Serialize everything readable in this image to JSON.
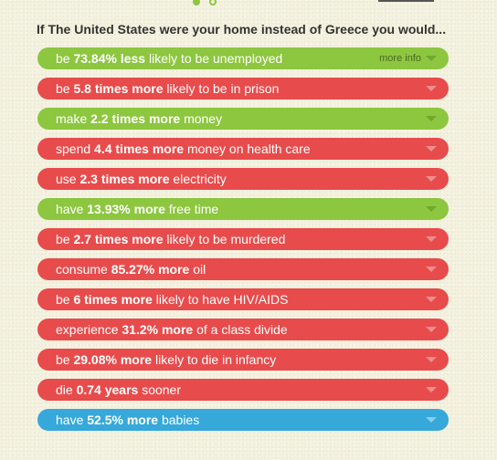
{
  "heading": "If The United States were your home instead of Greece you would...",
  "more_info_label": "more info",
  "rows": [
    {
      "before": "be ",
      "strong": "73.84% less",
      "after": " likely to be unemployed",
      "color": "green",
      "caret_icon": "chevron-down-icon"
    },
    {
      "before": "be ",
      "strong": "5.8 times more",
      "after": " likely to be in prison",
      "color": "red",
      "caret_icon": "chevron-down-icon"
    },
    {
      "before": "make ",
      "strong": "2.2 times more",
      "after": " money",
      "color": "green",
      "caret_icon": "chevron-down-icon"
    },
    {
      "before": "spend ",
      "strong": "4.4 times more",
      "after": " money on health care",
      "color": "red",
      "caret_icon": "chevron-down-icon"
    },
    {
      "before": "use ",
      "strong": "2.3 times more",
      "after": " electricity",
      "color": "red",
      "caret_icon": "chevron-down-icon"
    },
    {
      "before": "have ",
      "strong": "13.93% more",
      "after": " free time",
      "color": "green",
      "caret_icon": "chevron-down-icon"
    },
    {
      "before": "be ",
      "strong": "2.7 times more",
      "after": " likely to be murdered",
      "color": "red",
      "caret_icon": "chevron-down-icon"
    },
    {
      "before": "consume ",
      "strong": "85.27% more",
      "after": " oil",
      "color": "red",
      "caret_icon": "chevron-down-icon"
    },
    {
      "before": "be ",
      "strong": "6 times more",
      "after": " likely to have HIV/AIDS",
      "color": "red",
      "caret_icon": "chevron-down-icon"
    },
    {
      "before": "experience ",
      "strong": "31.2% more",
      "after": " of a class divide",
      "color": "red",
      "caret_icon": "chevron-down-icon"
    },
    {
      "before": "be ",
      "strong": "29.08% more",
      "after": " likely to die in infancy",
      "color": "red",
      "caret_icon": "chevron-down-icon"
    },
    {
      "before": "die ",
      "strong": "0.74 years",
      "after": " sooner",
      "color": "red",
      "caret_icon": "chevron-down-icon"
    },
    {
      "before": "have ",
      "strong": "52.5% more",
      "after": " babies",
      "color": "blue",
      "caret_icon": "chevron-down-icon"
    }
  ],
  "colors": {
    "green": "#8dc63f",
    "red": "#e84b4b",
    "blue": "#36a8da",
    "heading_text": "#333333",
    "background": "#f4f2df"
  }
}
